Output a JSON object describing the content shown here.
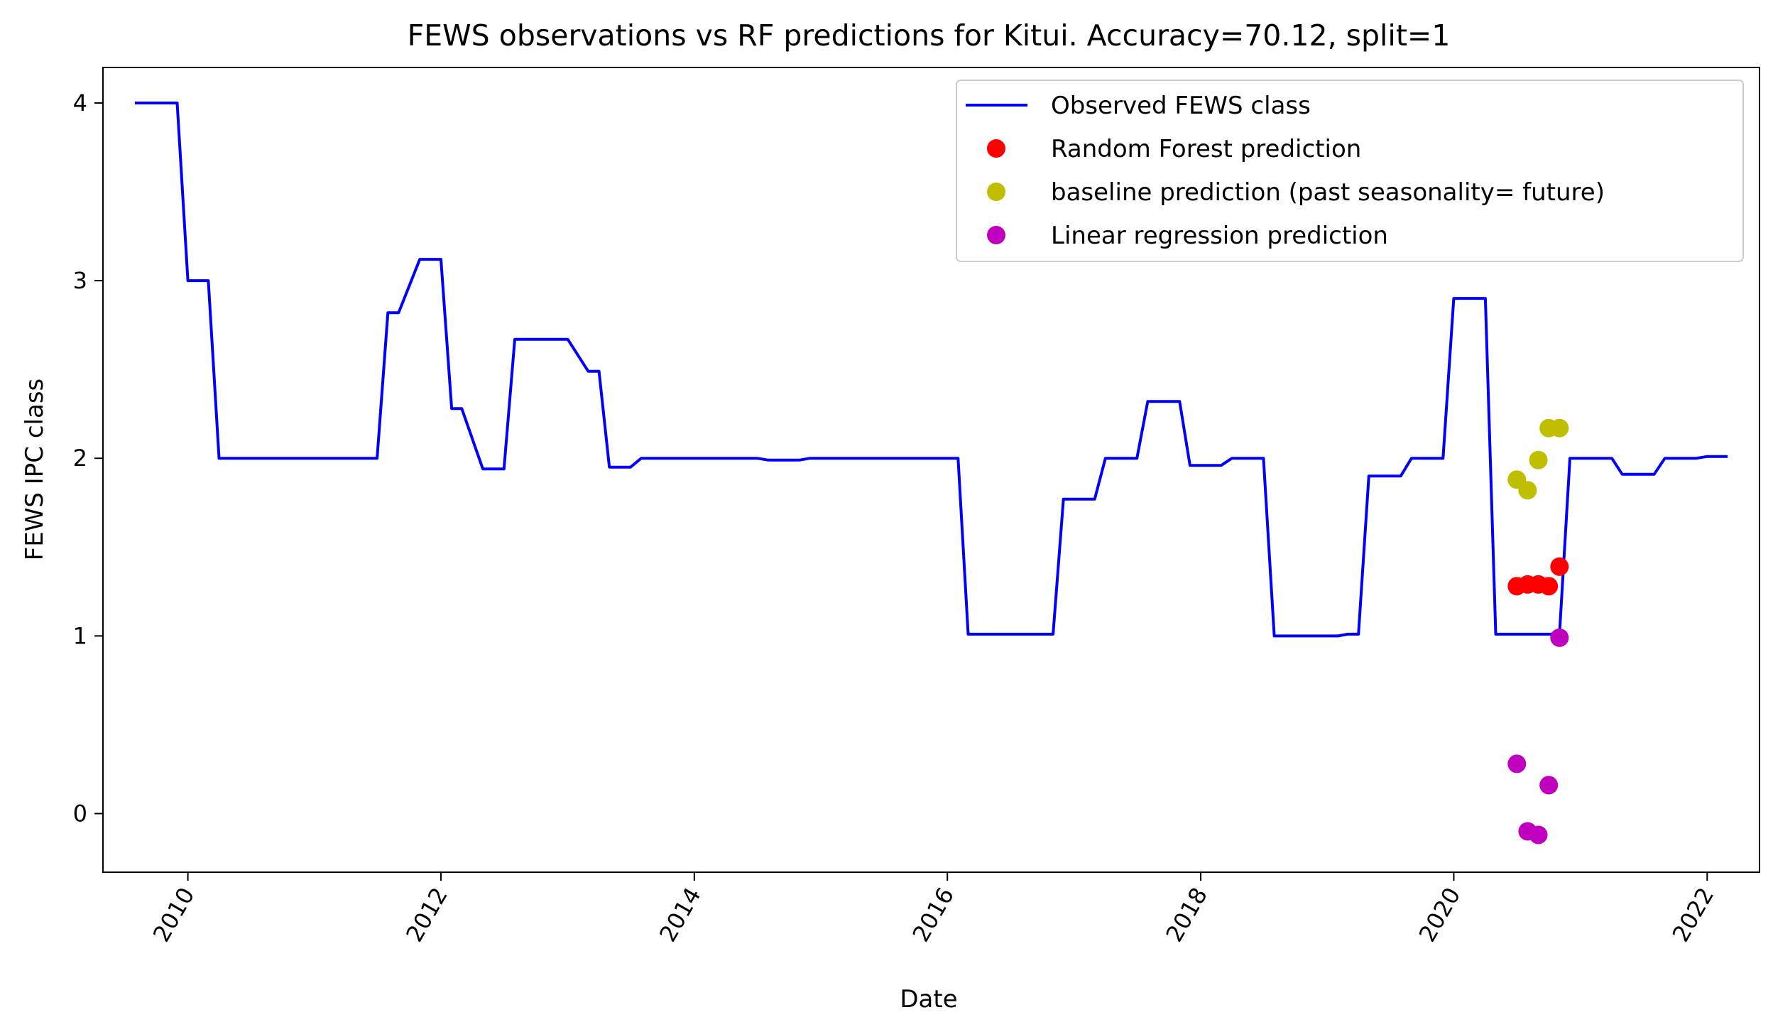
{
  "chart_data": {
    "type": "line",
    "title": "FEWS observations vs RF predictions for Kitui. Accuracy=70.12, split=1",
    "xlabel": "Date",
    "ylabel": "FEWS IPC class",
    "xlim": [
      "2009-05-01",
      "2022-06-01"
    ],
    "ylim": [
      -0.33,
      4.2
    ],
    "x_ticks": [
      "2010-01-01",
      "2012-01-01",
      "2014-01-01",
      "2016-01-01",
      "2018-01-01",
      "2020-01-01",
      "2022-01-01"
    ],
    "x_tick_labels": [
      "2010",
      "2012",
      "2014",
      "2016",
      "2018",
      "2020",
      "2022"
    ],
    "y_ticks": [
      0,
      1,
      2,
      3,
      4
    ],
    "y_tick_labels": [
      "0",
      "1",
      "2",
      "3",
      "4"
    ],
    "legend_position": "top-right",
    "grid": false,
    "series": [
      {
        "name": "Observed FEWS class",
        "kind": "line",
        "color": "#0000ff",
        "points": [
          [
            "2009-08-01",
            4.0
          ],
          [
            "2009-12-01",
            4.0
          ],
          [
            "2010-01-01",
            3.0
          ],
          [
            "2010-03-01",
            3.0
          ],
          [
            "2010-04-01",
            2.0
          ],
          [
            "2011-07-01",
            2.0
          ],
          [
            "2011-08-01",
            2.82
          ],
          [
            "2011-09-01",
            2.82
          ],
          [
            "2011-11-01",
            3.12
          ],
          [
            "2012-01-01",
            3.12
          ],
          [
            "2012-02-01",
            2.28
          ],
          [
            "2012-03-01",
            2.28
          ],
          [
            "2012-05-01",
            1.94
          ],
          [
            "2012-07-01",
            1.94
          ],
          [
            "2012-08-01",
            2.67
          ],
          [
            "2013-01-01",
            2.67
          ],
          [
            "2013-03-01",
            2.49
          ],
          [
            "2013-04-01",
            2.49
          ],
          [
            "2013-05-01",
            1.95
          ],
          [
            "2013-07-01",
            1.95
          ],
          [
            "2013-08-01",
            2.0
          ],
          [
            "2014-07-01",
            2.0
          ],
          [
            "2014-08-01",
            1.99
          ],
          [
            "2014-11-01",
            1.99
          ],
          [
            "2014-12-01",
            2.0
          ],
          [
            "2016-02-01",
            2.0
          ],
          [
            "2016-03-01",
            1.01
          ],
          [
            "2016-11-01",
            1.01
          ],
          [
            "2016-12-01",
            1.77
          ],
          [
            "2017-03-01",
            1.77
          ],
          [
            "2017-04-01",
            2.0
          ],
          [
            "2017-07-01",
            2.0
          ],
          [
            "2017-08-01",
            2.32
          ],
          [
            "2017-11-01",
            2.32
          ],
          [
            "2017-12-01",
            1.96
          ],
          [
            "2018-03-01",
            1.96
          ],
          [
            "2018-04-01",
            2.0
          ],
          [
            "2018-07-01",
            2.0
          ],
          [
            "2018-08-01",
            1.0
          ],
          [
            "2019-02-01",
            1.0
          ],
          [
            "2019-03-01",
            1.01
          ],
          [
            "2019-04-01",
            1.01
          ],
          [
            "2019-05-01",
            1.9
          ],
          [
            "2019-08-01",
            1.9
          ],
          [
            "2019-09-01",
            2.0
          ],
          [
            "2019-12-01",
            2.0
          ],
          [
            "2020-01-01",
            2.9
          ],
          [
            "2020-04-01",
            2.9
          ],
          [
            "2020-05-01",
            1.01
          ],
          [
            "2020-11-01",
            1.01
          ],
          [
            "2020-12-01",
            2.0
          ],
          [
            "2021-04-01",
            2.0
          ],
          [
            "2021-05-01",
            1.91
          ],
          [
            "2021-08-01",
            1.91
          ],
          [
            "2021-09-01",
            2.0
          ],
          [
            "2021-12-01",
            2.0
          ],
          [
            "2022-01-01",
            2.01
          ],
          [
            "2022-03-01",
            2.01
          ]
        ]
      },
      {
        "name": "Random Forest prediction",
        "kind": "scatter",
        "color": "#ff0000",
        "points": [
          [
            "2020-07-01",
            1.28
          ],
          [
            "2020-08-01",
            1.29
          ],
          [
            "2020-09-01",
            1.29
          ],
          [
            "2020-10-01",
            1.28
          ],
          [
            "2020-11-01",
            1.39
          ]
        ]
      },
      {
        "name": "baseline prediction (past seasonality= future)",
        "kind": "scatter",
        "color": "#bfbf00",
        "points": [
          [
            "2020-07-01",
            1.88
          ],
          [
            "2020-08-01",
            1.82
          ],
          [
            "2020-09-01",
            1.99
          ],
          [
            "2020-10-01",
            2.17
          ],
          [
            "2020-11-01",
            2.17
          ]
        ]
      },
      {
        "name": "Linear regression prediction",
        "kind": "scatter",
        "color": "#bf00bf",
        "points": [
          [
            "2020-07-01",
            0.28
          ],
          [
            "2020-08-01",
            -0.1
          ],
          [
            "2020-09-01",
            -0.12
          ],
          [
            "2020-10-01",
            0.16
          ],
          [
            "2020-11-01",
            0.99
          ]
        ]
      }
    ]
  }
}
